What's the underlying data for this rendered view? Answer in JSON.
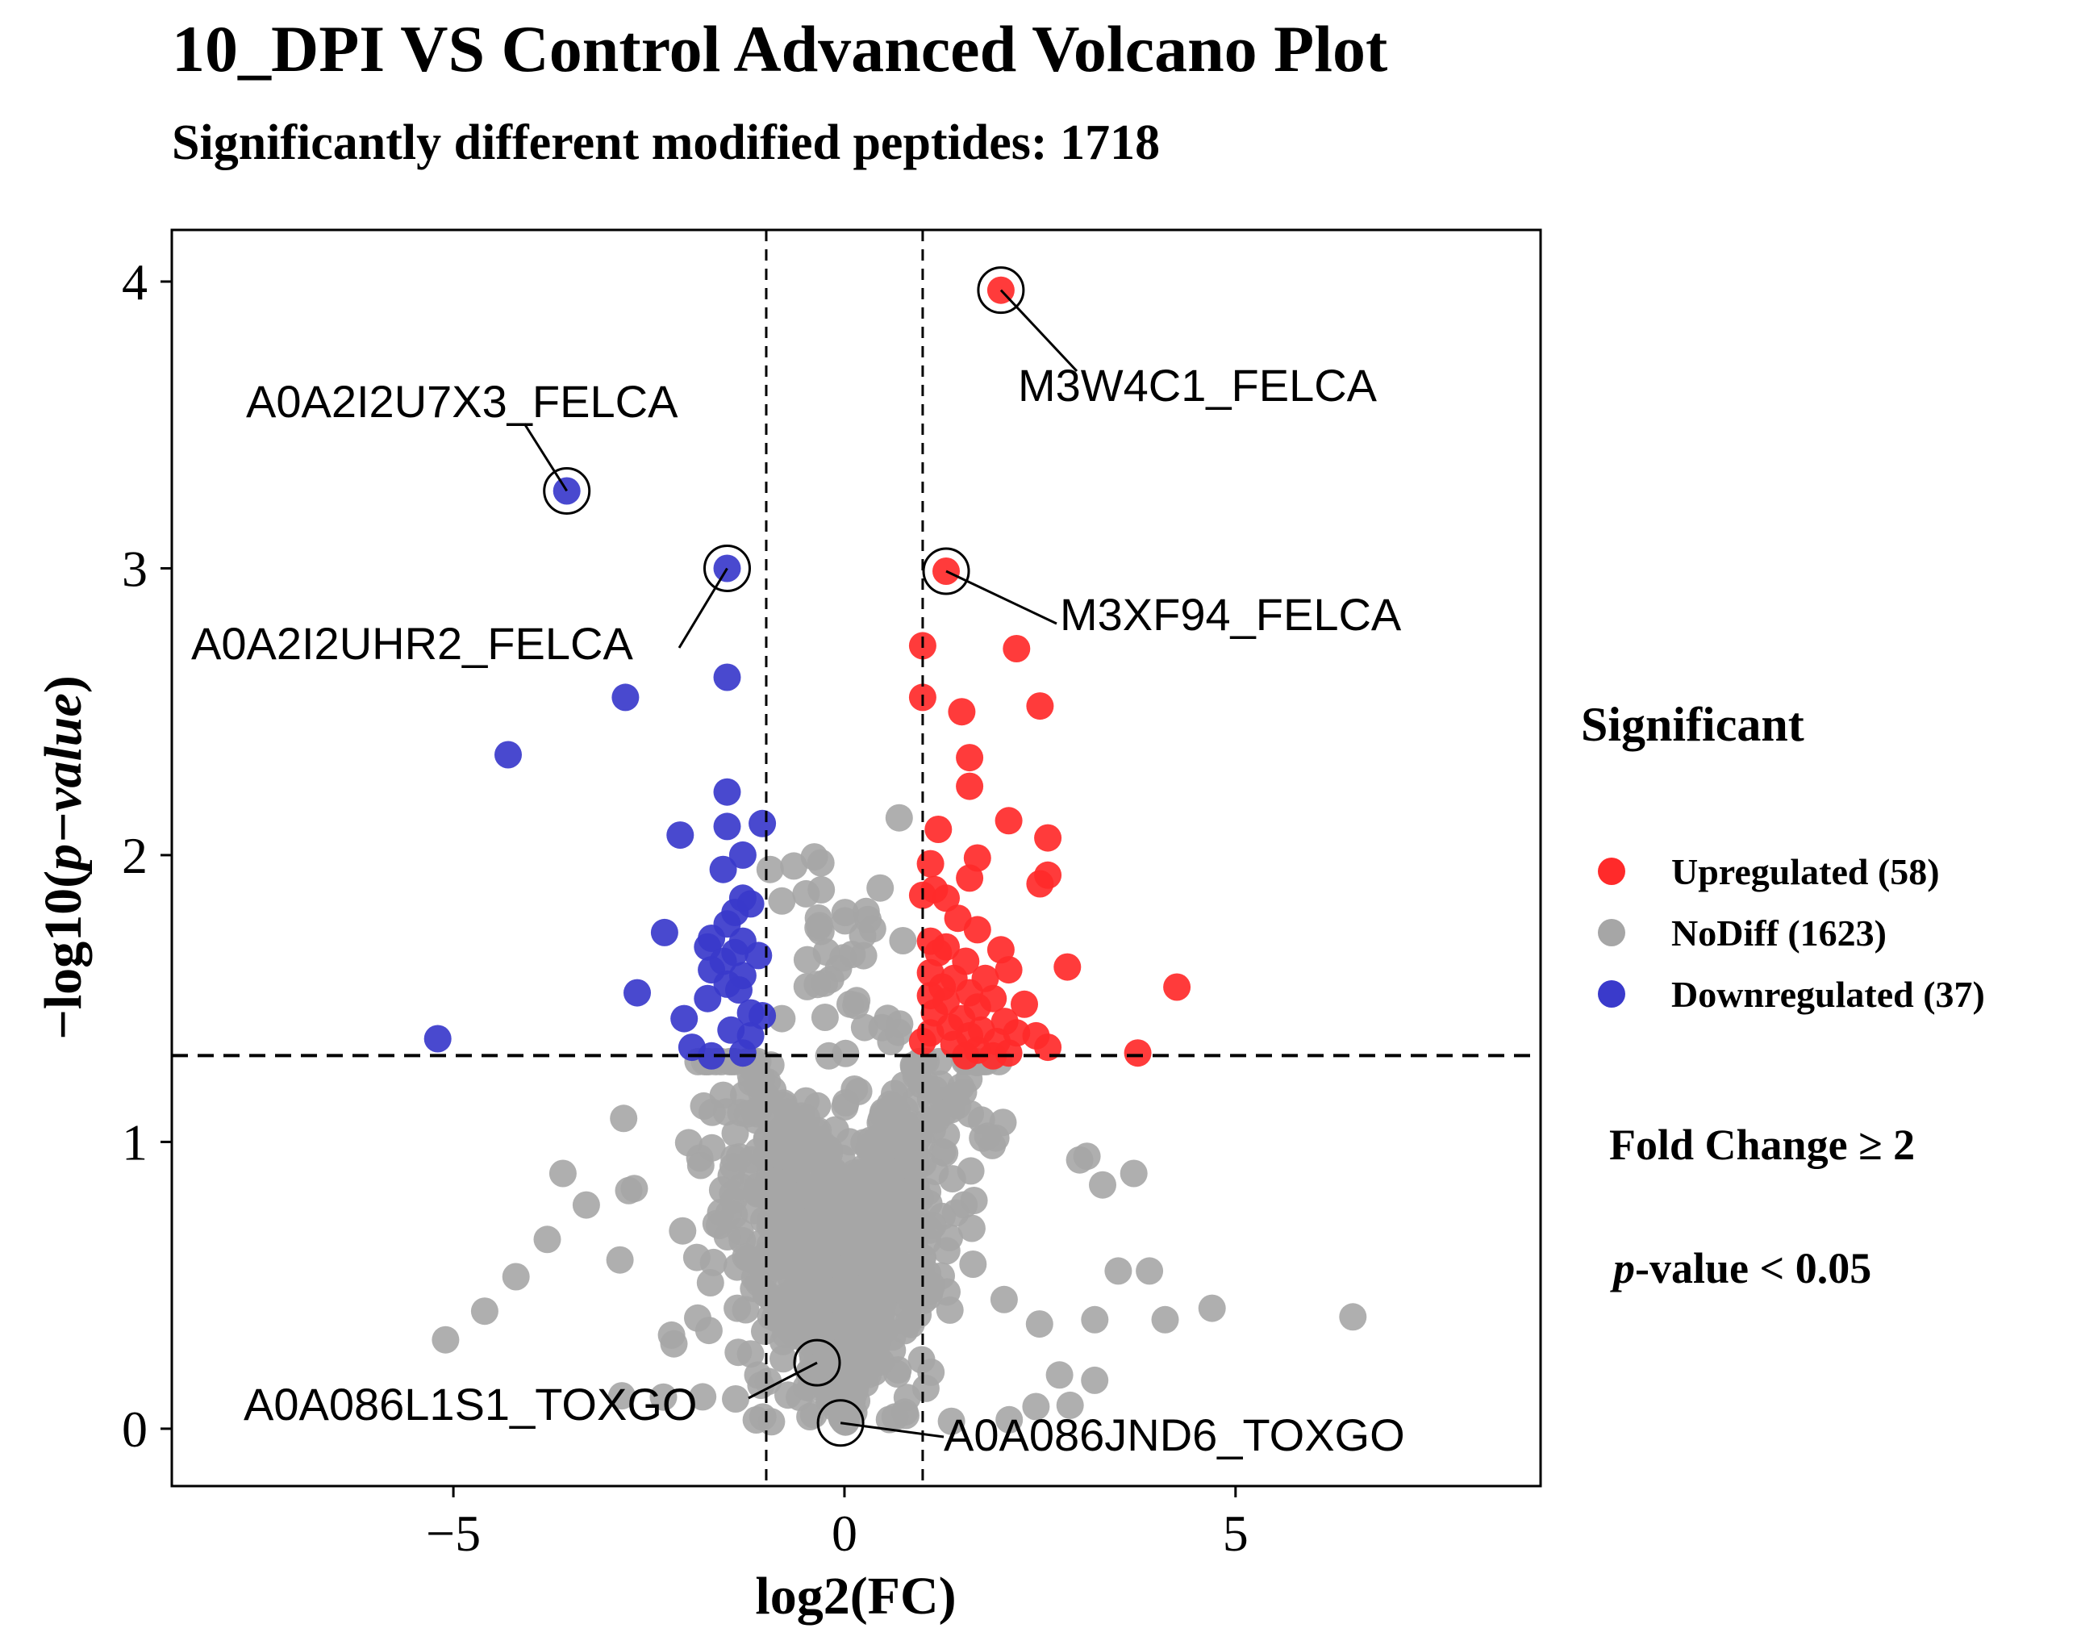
{
  "chart_data": {
    "type": "scatter",
    "title": "10_DPI VS Control Advanced Volcano Plot",
    "subtitle": "Significantly different modified peptides: 1718",
    "xlabel": "log2(FC)",
    "ylabel": {
      "prefix": "−log10(",
      "italic": "p−value",
      "suffix": ")"
    },
    "xlim": [
      -8.6,
      8.9
    ],
    "ylim": [
      -0.2,
      4.18
    ],
    "xticks": [
      {
        "value": -5,
        "label": "−5"
      },
      {
        "value": 0,
        "label": "0"
      },
      {
        "value": 5,
        "label": "5"
      }
    ],
    "yticks": [
      {
        "value": 0,
        "label": "0"
      },
      {
        "value": 1,
        "label": "1"
      },
      {
        "value": 2,
        "label": "2"
      },
      {
        "value": 3,
        "label": "3"
      },
      {
        "value": 4,
        "label": "4"
      }
    ],
    "thresholds": {
      "fc_lines": [
        -1,
        1
      ],
      "pvalue_line": 1.301
    },
    "legend": {
      "title": "Significant",
      "position": "right",
      "items": [
        {
          "label": "Upregulated (58)",
          "color": "#ff2a2a"
        },
        {
          "label": "NoDiff (1623)",
          "color": "#a6a6a6"
        },
        {
          "label": "Downregulated (37)",
          "color": "#3a3acb"
        }
      ]
    },
    "criteria": [
      {
        "label": "Fold Change ≥ 2"
      },
      {
        "italic": "p",
        "rest": "-value < 0.05"
      }
    ],
    "series": [
      {
        "name": "Upregulated",
        "color": "#ff2a2a",
        "points": [
          [
            2.0,
            3.97
          ],
          [
            1.3,
            2.99
          ],
          [
            1.0,
            2.73
          ],
          [
            2.2,
            2.72
          ],
          [
            1.0,
            2.55
          ],
          [
            2.5,
            2.52
          ],
          [
            1.5,
            2.5
          ],
          [
            1.6,
            2.34
          ],
          [
            1.6,
            2.24
          ],
          [
            2.1,
            2.12
          ],
          [
            1.2,
            2.09
          ],
          [
            2.6,
            2.06
          ],
          [
            1.7,
            1.99
          ],
          [
            1.1,
            1.97
          ],
          [
            2.6,
            1.93
          ],
          [
            1.6,
            1.92
          ],
          [
            2.5,
            1.9
          ],
          [
            1.15,
            1.88
          ],
          [
            1.3,
            1.85
          ],
          [
            1.0,
            1.86
          ],
          [
            1.45,
            1.78
          ],
          [
            1.7,
            1.74
          ],
          [
            1.1,
            1.7
          ],
          [
            1.3,
            1.68
          ],
          [
            2.0,
            1.67
          ],
          [
            1.2,
            1.66
          ],
          [
            1.55,
            1.63
          ],
          [
            2.85,
            1.61
          ],
          [
            1.1,
            1.59
          ],
          [
            1.4,
            1.57
          ],
          [
            1.8,
            1.57
          ],
          [
            2.1,
            1.6
          ],
          [
            1.25,
            1.54
          ],
          [
            4.25,
            1.54
          ],
          [
            1.6,
            1.52
          ],
          [
            1.1,
            1.51
          ],
          [
            1.9,
            1.5
          ],
          [
            1.3,
            1.49
          ],
          [
            2.3,
            1.48
          ],
          [
            1.7,
            1.47
          ],
          [
            1.15,
            1.45
          ],
          [
            1.5,
            1.43
          ],
          [
            2.05,
            1.42
          ],
          [
            1.35,
            1.4
          ],
          [
            1.75,
            1.39
          ],
          [
            1.1,
            1.38
          ],
          [
            2.2,
            1.38
          ],
          [
            1.6,
            1.37
          ],
          [
            2.45,
            1.37
          ],
          [
            1.0,
            1.35
          ],
          [
            1.95,
            1.35
          ],
          [
            1.4,
            1.34
          ],
          [
            2.6,
            1.33
          ],
          [
            1.7,
            1.32
          ],
          [
            2.1,
            1.31
          ],
          [
            3.75,
            1.31
          ],
          [
            1.55,
            1.3
          ],
          [
            1.9,
            1.3
          ]
        ]
      },
      {
        "name": "Downregulated",
        "color": "#3a3acb",
        "points": [
          [
            -3.55,
            3.27
          ],
          [
            -1.5,
            3.0
          ],
          [
            -1.5,
            2.62
          ],
          [
            -2.8,
            2.55
          ],
          [
            -4.3,
            2.35
          ],
          [
            -1.5,
            2.22
          ],
          [
            -1.5,
            2.1
          ],
          [
            -1.05,
            2.11
          ],
          [
            -2.1,
            2.07
          ],
          [
            -1.3,
            2.0
          ],
          [
            -1.55,
            1.95
          ],
          [
            -1.3,
            1.85
          ],
          [
            -1.2,
            1.83
          ],
          [
            -1.4,
            1.8
          ],
          [
            -1.5,
            1.76
          ],
          [
            -2.3,
            1.73
          ],
          [
            -1.7,
            1.71
          ],
          [
            -1.3,
            1.7
          ],
          [
            -1.75,
            1.68
          ],
          [
            -1.4,
            1.66
          ],
          [
            -1.1,
            1.65
          ],
          [
            -1.55,
            1.63
          ],
          [
            -1.7,
            1.6
          ],
          [
            -1.3,
            1.58
          ],
          [
            -1.5,
            1.55
          ],
          [
            -1.35,
            1.53
          ],
          [
            -2.65,
            1.52
          ],
          [
            -1.75,
            1.5
          ],
          [
            -1.2,
            1.45
          ],
          [
            -2.05,
            1.43
          ],
          [
            -1.05,
            1.44
          ],
          [
            -1.45,
            1.39
          ],
          [
            -1.2,
            1.37
          ],
          [
            -5.2,
            1.36
          ],
          [
            -1.95,
            1.33
          ],
          [
            -1.3,
            1.31
          ],
          [
            -1.7,
            1.3
          ]
        ]
      }
    ],
    "nodiff_points_shown": 1623,
    "annotations": [
      {
        "label": "M3W4C1_FELCA",
        "x": 2.0,
        "y": 3.97
      },
      {
        "label": "A0A2I2U7X3_FELCA",
        "x": -3.55,
        "y": 3.27
      },
      {
        "label": "A0A2I2UHR2_FELCA",
        "x": -1.5,
        "y": 3.0
      },
      {
        "label": "M3XF94_FELCA",
        "x": 1.3,
        "y": 2.99
      },
      {
        "label": "A0A086L1S1_TOXGO",
        "x": -0.35,
        "y": 0.23
      },
      {
        "label": "A0A086JND6_TOXGO",
        "x": -0.05,
        "y": 0.02
      }
    ]
  }
}
